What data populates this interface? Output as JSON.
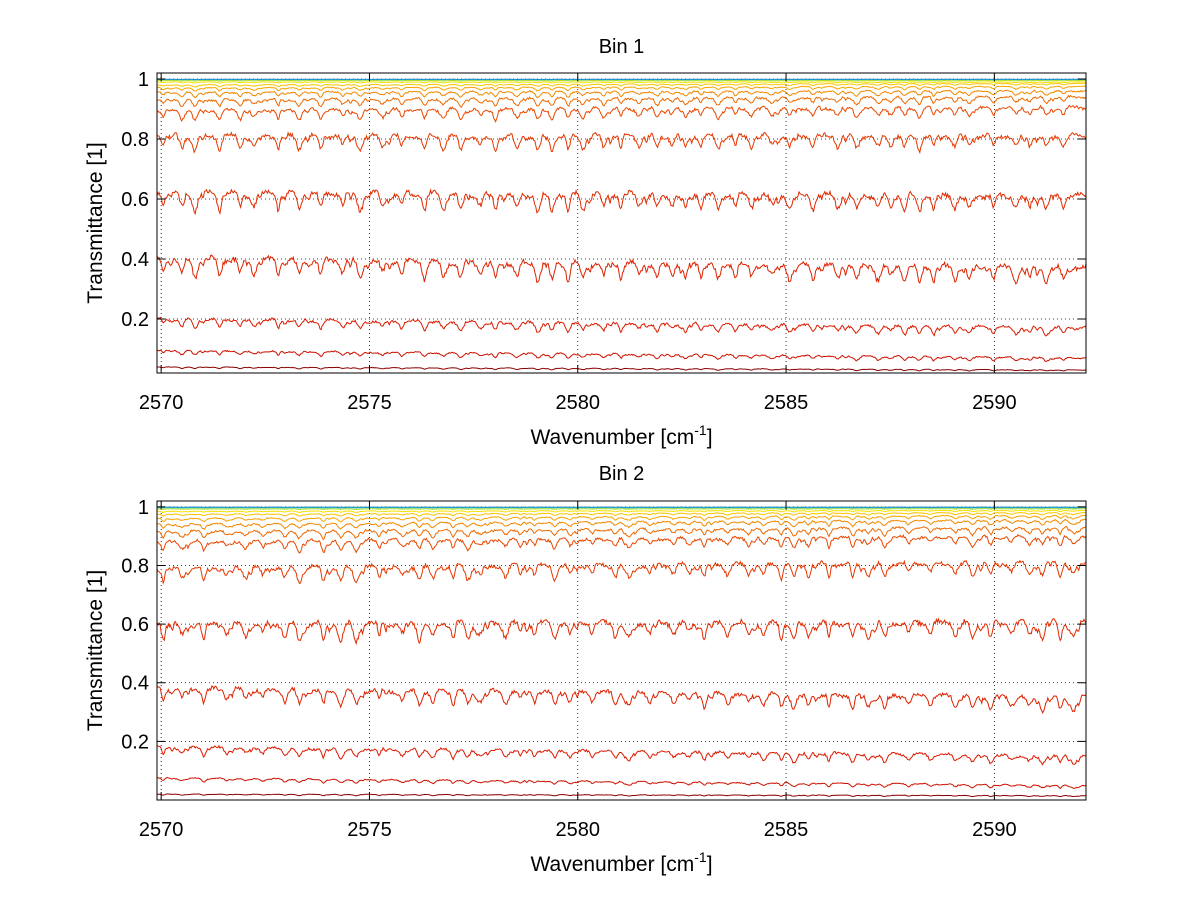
{
  "chart_data": [
    {
      "type": "line",
      "title": "Bin 1",
      "xlabel": "Wavenumber [cm",
      "xlabel_sup": "-1",
      "xlabel_end": "]",
      "ylabel": "Transmittance [1]",
      "xlim": [
        2569.9,
        2592.2
      ],
      "ylim": [
        0.02,
        1.02
      ],
      "x_ticks": [
        2570,
        2575,
        2580,
        2585,
        2590
      ],
      "x_tick_labels": [
        "2570",
        "2575",
        "2580",
        "2585",
        "2590"
      ],
      "y_ticks": [
        0.2,
        0.4,
        0.6,
        0.8,
        1
      ],
      "y_tick_labels": [
        "0.2",
        "0.4",
        "0.6",
        "0.8",
        "1"
      ],
      "grid": true,
      "series_profiles": [
        {
          "start": 0.04,
          "end": 0.03,
          "depth": 0.005,
          "color": "#8b0000"
        },
        {
          "start": 0.095,
          "end": 0.07,
          "depth": 0.015,
          "color": "#cc1100"
        },
        {
          "start": 0.2,
          "end": 0.17,
          "depth": 0.03,
          "color": "#dd1a00"
        },
        {
          "start": 0.4,
          "end": 0.37,
          "depth": 0.06,
          "color": "#dd2200"
        },
        {
          "start": 0.62,
          "end": 0.61,
          "depth": 0.06,
          "color": "#e02a00"
        },
        {
          "start": 0.81,
          "end": 0.81,
          "depth": 0.05,
          "color": "#e43800"
        },
        {
          "start": 0.895,
          "end": 0.905,
          "depth": 0.035,
          "color": "#e84800"
        },
        {
          "start": 0.93,
          "end": 0.94,
          "depth": 0.025,
          "color": "#ee6a00"
        },
        {
          "start": 0.955,
          "end": 0.96,
          "depth": 0.017,
          "color": "#f28800"
        },
        {
          "start": 0.97,
          "end": 0.975,
          "depth": 0.01,
          "color": "#f6a400"
        },
        {
          "start": 0.98,
          "end": 0.985,
          "depth": 0.006,
          "color": "#f9c400"
        },
        {
          "start": 0.99,
          "end": 0.99,
          "depth": 0.003,
          "color": "#f4e000"
        },
        {
          "start": 0.995,
          "end": 0.995,
          "depth": 0.002,
          "color": "#b8e02a"
        },
        {
          "start": 0.998,
          "end": 0.998,
          "depth": 0.001,
          "color": "#40d0b0"
        },
        {
          "start": 0.999,
          "end": 0.999,
          "depth": 0.0005,
          "color": "#1a8ad0"
        }
      ]
    },
    {
      "type": "line",
      "title": "Bin 2",
      "xlabel": "Wavenumber [cm",
      "xlabel_sup": "-1",
      "xlabel_end": "]",
      "ylabel": "Transmittance [1]",
      "xlim": [
        2569.9,
        2592.2
      ],
      "ylim": [
        0.0,
        1.02
      ],
      "x_ticks": [
        2570,
        2575,
        2580,
        2585,
        2590
      ],
      "x_tick_labels": [
        "2570",
        "2575",
        "2580",
        "2585",
        "2590"
      ],
      "y_ticks": [
        0.2,
        0.4,
        0.6,
        0.8,
        1
      ],
      "y_tick_labels": [
        "0.2",
        "0.4",
        "0.6",
        "0.8",
        "1"
      ],
      "grid": true,
      "series_profiles": [
        {
          "start": 0.02,
          "end": 0.015,
          "depth": 0.004,
          "color": "#8b0000"
        },
        {
          "start": 0.075,
          "end": 0.05,
          "depth": 0.012,
          "color": "#cc1100"
        },
        {
          "start": 0.18,
          "end": 0.15,
          "depth": 0.03,
          "color": "#dd1a00"
        },
        {
          "start": 0.38,
          "end": 0.35,
          "depth": 0.05,
          "color": "#dd2200"
        },
        {
          "start": 0.6,
          "end": 0.605,
          "depth": 0.06,
          "color": "#e02a00"
        },
        {
          "start": 0.79,
          "end": 0.81,
          "depth": 0.05,
          "color": "#e43800"
        },
        {
          "start": 0.88,
          "end": 0.9,
          "depth": 0.035,
          "color": "#e84800"
        },
        {
          "start": 0.915,
          "end": 0.93,
          "depth": 0.025,
          "color": "#ee6a00"
        },
        {
          "start": 0.94,
          "end": 0.955,
          "depth": 0.017,
          "color": "#f28800"
        },
        {
          "start": 0.96,
          "end": 0.97,
          "depth": 0.012,
          "color": "#f6a400"
        },
        {
          "start": 0.975,
          "end": 0.98,
          "depth": 0.007,
          "color": "#f9c400"
        },
        {
          "start": 0.985,
          "end": 0.988,
          "depth": 0.004,
          "color": "#f4e000"
        },
        {
          "start": 0.993,
          "end": 0.994,
          "depth": 0.002,
          "color": "#b8e02a"
        },
        {
          "start": 0.997,
          "end": 0.997,
          "depth": 0.001,
          "color": "#40d0b0"
        },
        {
          "start": 0.999,
          "end": 0.999,
          "depth": 0.0005,
          "color": "#1a8ad0"
        }
      ]
    }
  ]
}
